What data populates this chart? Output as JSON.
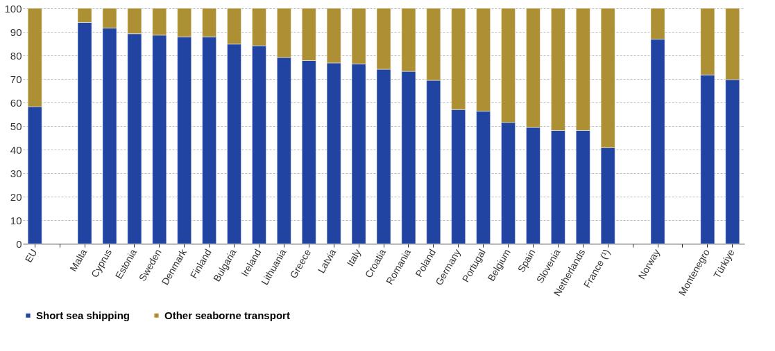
{
  "chart_data": {
    "type": "bar",
    "stacked": true,
    "categories": [
      "EU",
      null,
      "Malta",
      "Cyprus",
      "Estonia",
      "Sweden",
      "Denmark",
      "Finland",
      "Bulgaria",
      "Ireland",
      "Lithuania",
      "Greece",
      "Latvia",
      "Italy",
      "Croatia",
      "Romania",
      "Poland",
      "Germany",
      "Portugal",
      "Belgium",
      "Spain",
      "Slovenia",
      "Netherlands",
      "France (¹)",
      null,
      "Norway",
      null,
      "Montenegro",
      "Türkiye"
    ],
    "series": [
      {
        "name": "Short sea shipping",
        "color": "#2144a3",
        "values": [
          58.2,
          null,
          94.0,
          91.6,
          89.2,
          88.6,
          87.9,
          87.9,
          84.8,
          84.1,
          79.1,
          77.8,
          76.8,
          76.4,
          74.1,
          73.2,
          69.4,
          57.0,
          56.3,
          51.5,
          49.4,
          48.1,
          48.1,
          40.8,
          null,
          86.9,
          null,
          71.7,
          69.7
        ]
      },
      {
        "name": "Other seaborne transport",
        "color": "#ad9033",
        "values": [
          41.8,
          null,
          6.0,
          8.4,
          10.8,
          11.4,
          12.1,
          12.1,
          15.2,
          15.9,
          20.9,
          22.2,
          23.2,
          23.6,
          25.9,
          26.8,
          30.6,
          43.0,
          43.7,
          48.5,
          50.6,
          51.9,
          51.9,
          59.2,
          null,
          13.1,
          null,
          28.3,
          30.3
        ]
      }
    ],
    "ylim": [
      0,
      100
    ],
    "yticks": [
      0,
      10,
      20,
      30,
      40,
      50,
      60,
      70,
      80,
      90,
      100
    ],
    "grid": "y",
    "legend": "bottom"
  }
}
